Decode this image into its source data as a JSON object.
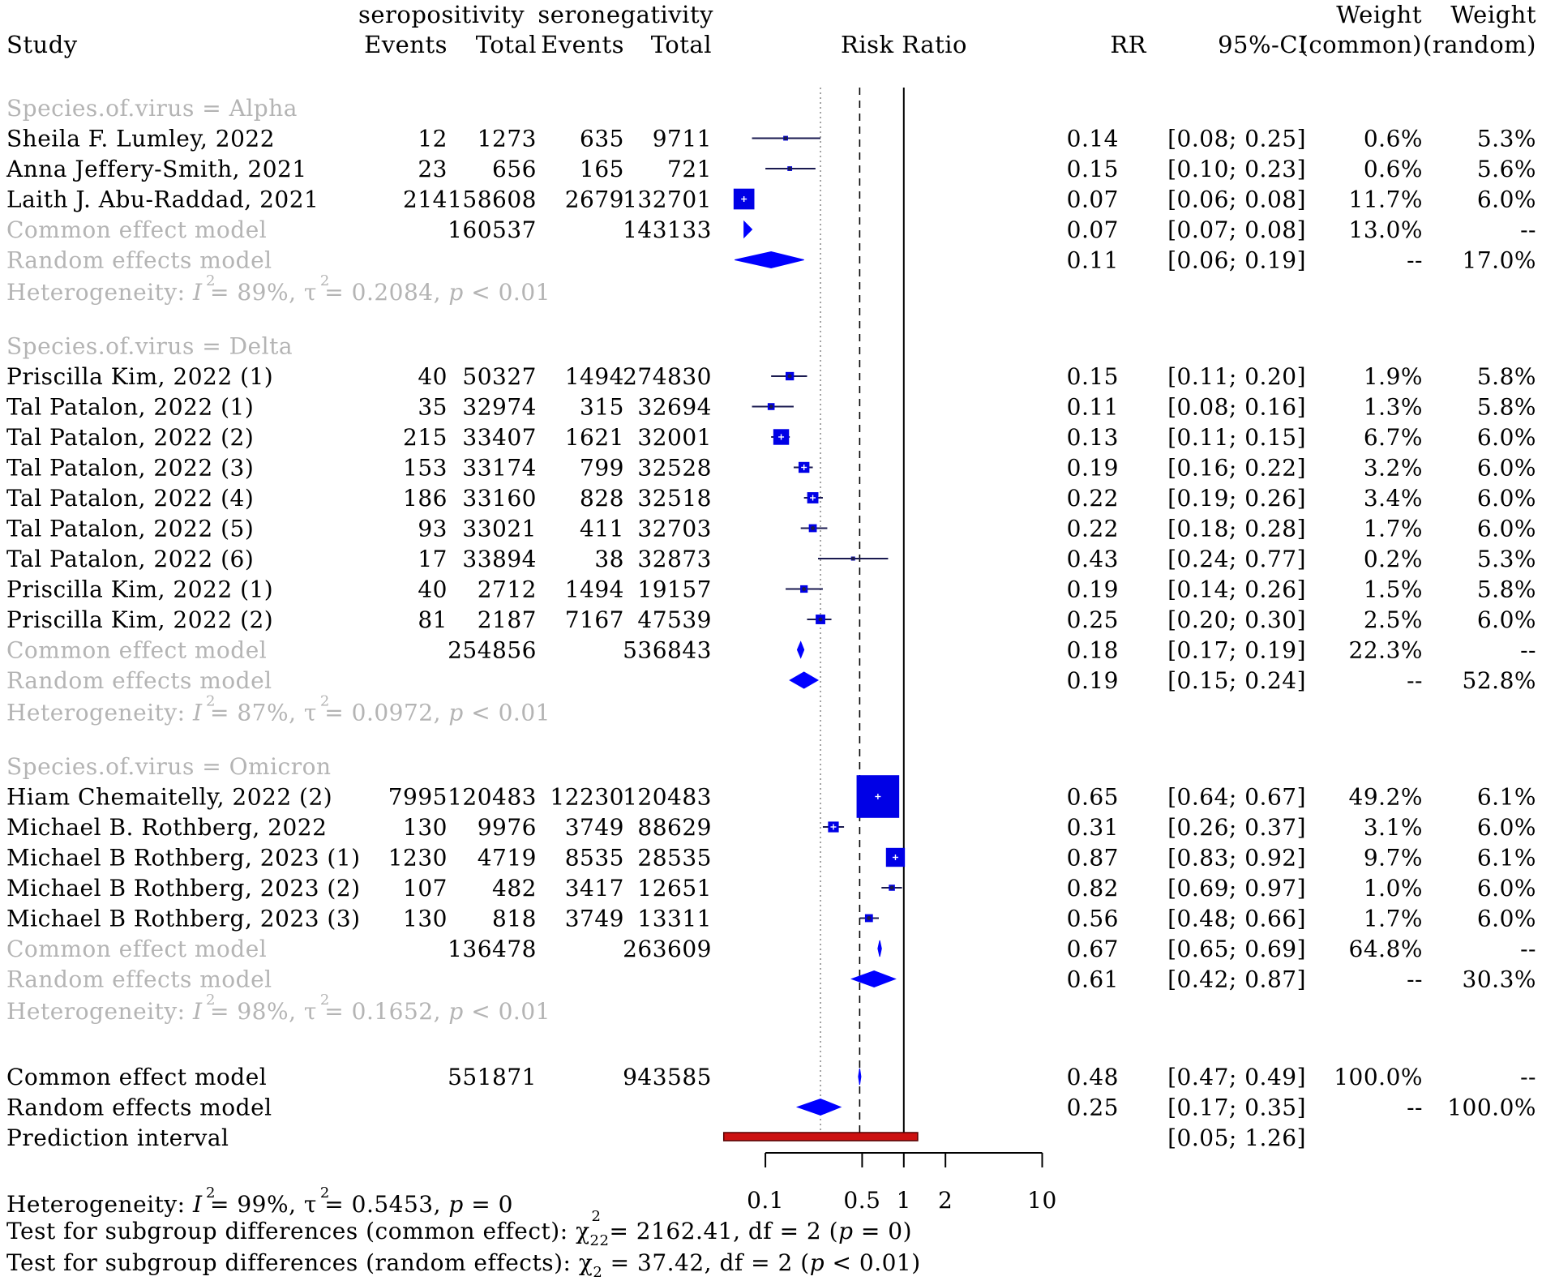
{
  "chart_data": {
    "type": "forest",
    "headers": {
      "study": "Study",
      "group_e": "seropositivity",
      "group_c": "seronegativity",
      "events_e": "Events",
      "total_e": "Total",
      "events_c": "Events",
      "total_c": "Total",
      "plot": "Risk Ratio",
      "rr": "RR",
      "ci": "95%-CI",
      "weight": "Weight",
      "weight_common": "(common)",
      "weight_random": "(random)"
    },
    "axis": {
      "scale": "log",
      "xlim": [
        0.07,
        10
      ],
      "ticks": [
        0.1,
        0.5,
        1,
        2,
        10
      ],
      "tick_labels": [
        "0.1",
        "0.5",
        "1",
        "2",
        "10"
      ],
      "reference_line": 1,
      "common_pooled_line": 0.48,
      "random_pooled_line": 0.25
    },
    "subgroups": [
      {
        "label": "Species.of.virus = Alpha",
        "studies": [
          {
            "study": "Sheila F. Lumley, 2022",
            "ev_e": "12",
            "tot_e": "1273",
            "ev_c": "635",
            "tot_c": "9711",
            "rr": 0.14,
            "lo": 0.08,
            "hi": 0.25,
            "rr_txt": "0.14",
            "ci_txt": "[0.08; 0.25]",
            "w_common": "0.6%",
            "w_random": "5.3%",
            "wc": 0.6
          },
          {
            "study": "Anna Jeffery-Smith, 2021",
            "ev_e": "23",
            "tot_e": "656",
            "ev_c": "165",
            "tot_c": "721",
            "rr": 0.15,
            "lo": 0.1,
            "hi": 0.23,
            "rr_txt": "0.15",
            "ci_txt": "[0.10; 0.23]",
            "w_common": "0.6%",
            "w_random": "5.6%",
            "wc": 0.6
          },
          {
            "study": "Laith J. Abu-Raddad, 2021",
            "ev_e": "214",
            "tot_e": "158608",
            "ev_c": "2679",
            "tot_c": "132701",
            "rr": 0.07,
            "lo": 0.06,
            "hi": 0.08,
            "rr_txt": "0.07",
            "ci_txt": "[0.06; 0.08]",
            "w_common": "11.7%",
            "w_random": "6.0%",
            "wc": 11.7
          }
        ],
        "common": {
          "label": "Common effect model",
          "tot_e": "160537",
          "tot_c": "143133",
          "rr": 0.07,
          "lo": 0.07,
          "hi": 0.08,
          "rr_txt": "0.07",
          "ci_txt": "[0.07; 0.08]",
          "w_common": "13.0%",
          "w_random": "--"
        },
        "random": {
          "label": "Random effects model",
          "rr": 0.11,
          "lo": 0.06,
          "hi": 0.19,
          "rr_txt": "0.11",
          "ci_txt": "[0.06; 0.19]",
          "w_common": "--",
          "w_random": "17.0%"
        },
        "heterogeneity": {
          "prefix": "Heterogeneity: ",
          "I2": "I",
          "I2_val": " = 89%, ",
          "tau2": "τ",
          "tau2_val": " = 0.2084, ",
          "p": "p",
          "p_val": " < 0.01"
        }
      },
      {
        "label": "Species.of.virus = Delta",
        "studies": [
          {
            "study": "Priscilla Kim, 2022 (1)",
            "ev_e": "40",
            "tot_e": "50327",
            "ev_c": "1494",
            "tot_c": "274830",
            "rr": 0.15,
            "lo": 0.11,
            "hi": 0.2,
            "rr_txt": "0.15",
            "ci_txt": "[0.11; 0.20]",
            "w_common": "1.9%",
            "w_random": "5.8%",
            "wc": 1.9
          },
          {
            "study": "Tal Patalon, 2022 (1)",
            "ev_e": "35",
            "tot_e": "32974",
            "ev_c": "315",
            "tot_c": "32694",
            "rr": 0.11,
            "lo": 0.08,
            "hi": 0.16,
            "rr_txt": "0.11",
            "ci_txt": "[0.08; 0.16]",
            "w_common": "1.3%",
            "w_random": "5.8%",
            "wc": 1.3
          },
          {
            "study": "Tal Patalon, 2022 (2)",
            "ev_e": "215",
            "tot_e": "33407",
            "ev_c": "1621",
            "tot_c": "32001",
            "rr": 0.13,
            "lo": 0.11,
            "hi": 0.15,
            "rr_txt": "0.13",
            "ci_txt": "[0.11; 0.15]",
            "w_common": "6.7%",
            "w_random": "6.0%",
            "wc": 6.7
          },
          {
            "study": "Tal Patalon, 2022 (3)",
            "ev_e": "153",
            "tot_e": "33174",
            "ev_c": "799",
            "tot_c": "32528",
            "rr": 0.19,
            "lo": 0.16,
            "hi": 0.22,
            "rr_txt": "0.19",
            "ci_txt": "[0.16; 0.22]",
            "w_common": "3.2%",
            "w_random": "6.0%",
            "wc": 3.2
          },
          {
            "study": "Tal Patalon, 2022 (4)",
            "ev_e": "186",
            "tot_e": "33160",
            "ev_c": "828",
            "tot_c": "32518",
            "rr": 0.22,
            "lo": 0.19,
            "hi": 0.26,
            "rr_txt": "0.22",
            "ci_txt": "[0.19; 0.26]",
            "w_common": "3.4%",
            "w_random": "6.0%",
            "wc": 3.4
          },
          {
            "study": "Tal Patalon, 2022 (5)",
            "ev_e": "93",
            "tot_e": "33021",
            "ev_c": "411",
            "tot_c": "32703",
            "rr": 0.22,
            "lo": 0.18,
            "hi": 0.28,
            "rr_txt": "0.22",
            "ci_txt": "[0.18; 0.28]",
            "w_common": "1.7%",
            "w_random": "6.0%",
            "wc": 1.7
          },
          {
            "study": "Tal Patalon, 2022 (6)",
            "ev_e": "17",
            "tot_e": "33894",
            "ev_c": "38",
            "tot_c": "32873",
            "rr": 0.43,
            "lo": 0.24,
            "hi": 0.77,
            "rr_txt": "0.43",
            "ci_txt": "[0.24; 0.77]",
            "w_common": "0.2%",
            "w_random": "5.3%",
            "wc": 0.2
          },
          {
            "study": "Priscilla Kim, 2022 (1)",
            "ev_e": "40",
            "tot_e": "2712",
            "ev_c": "1494",
            "tot_c": "19157",
            "rr": 0.19,
            "lo": 0.14,
            "hi": 0.26,
            "rr_txt": "0.19",
            "ci_txt": "[0.14; 0.26]",
            "w_common": "1.5%",
            "w_random": "5.8%",
            "wc": 1.5
          },
          {
            "study": "Priscilla Kim, 2022 (2)",
            "ev_e": "81",
            "tot_e": "2187",
            "ev_c": "7167",
            "tot_c": "47539",
            "rr": 0.25,
            "lo": 0.2,
            "hi": 0.3,
            "rr_txt": "0.25",
            "ci_txt": "[0.20; 0.30]",
            "w_common": "2.5%",
            "w_random": "6.0%",
            "wc": 2.5
          }
        ],
        "common": {
          "label": "Common effect model",
          "tot_e": "254856",
          "tot_c": "536843",
          "rr": 0.18,
          "lo": 0.17,
          "hi": 0.19,
          "rr_txt": "0.18",
          "ci_txt": "[0.17; 0.19]",
          "w_common": "22.3%",
          "w_random": "--"
        },
        "random": {
          "label": "Random effects model",
          "rr": 0.19,
          "lo": 0.15,
          "hi": 0.24,
          "rr_txt": "0.19",
          "ci_txt": "[0.15; 0.24]",
          "w_common": "--",
          "w_random": "52.8%"
        },
        "heterogeneity": {
          "prefix": "Heterogeneity: ",
          "I2": "I",
          "I2_val": " = 87%, ",
          "tau2": "τ",
          "tau2_val": " = 0.0972, ",
          "p": "p",
          "p_val": " < 0.01"
        }
      },
      {
        "label": "Species.of.virus = Omicron",
        "studies": [
          {
            "study": "Hiam Chemaitelly, 2022 (2)",
            "ev_e": "7995",
            "tot_e": "120483",
            "ev_c": "12230",
            "tot_c": "120483",
            "rr": 0.65,
            "lo": 0.64,
            "hi": 0.67,
            "rr_txt": "0.65",
            "ci_txt": "[0.64; 0.67]",
            "w_common": "49.2%",
            "w_random": "6.1%",
            "wc": 49.2
          },
          {
            "study": "Michael B. Rothberg, 2022",
            "ev_e": "130",
            "tot_e": "9976",
            "ev_c": "3749",
            "tot_c": "88629",
            "rr": 0.31,
            "lo": 0.26,
            "hi": 0.37,
            "rr_txt": "0.31",
            "ci_txt": "[0.26; 0.37]",
            "w_common": "3.1%",
            "w_random": "6.0%",
            "wc": 3.1
          },
          {
            "study": "Michael B Rothberg, 2023 (1)",
            "ev_e": "1230",
            "tot_e": "4719",
            "ev_c": "8535",
            "tot_c": "28535",
            "rr": 0.87,
            "lo": 0.83,
            "hi": 0.92,
            "rr_txt": "0.87",
            "ci_txt": "[0.83; 0.92]",
            "w_common": "9.7%",
            "w_random": "6.1%",
            "wc": 9.7
          },
          {
            "study": "Michael B Rothberg, 2023 (2)",
            "ev_e": "107",
            "tot_e": "482",
            "ev_c": "3417",
            "tot_c": "12651",
            "rr": 0.82,
            "lo": 0.69,
            "hi": 0.97,
            "rr_txt": "0.82",
            "ci_txt": "[0.69; 0.97]",
            "w_common": "1.0%",
            "w_random": "6.0%",
            "wc": 1.0
          },
          {
            "study": "Michael B Rothberg, 2023 (3)",
            "ev_e": "130",
            "tot_e": "818",
            "ev_c": "3749",
            "tot_c": "13311",
            "rr": 0.56,
            "lo": 0.48,
            "hi": 0.66,
            "rr_txt": "0.56",
            "ci_txt": "[0.48; 0.66]",
            "w_common": "1.7%",
            "w_random": "6.0%",
            "wc": 1.7
          }
        ],
        "common": {
          "label": "Common effect model",
          "tot_e": "136478",
          "tot_c": "263609",
          "rr": 0.67,
          "lo": 0.65,
          "hi": 0.69,
          "rr_txt": "0.67",
          "ci_txt": "[0.65; 0.69]",
          "w_common": "64.8%",
          "w_random": "--"
        },
        "random": {
          "label": "Random effects model",
          "rr": 0.61,
          "lo": 0.42,
          "hi": 0.87,
          "rr_txt": "0.61",
          "ci_txt": "[0.42; 0.87]",
          "w_common": "--",
          "w_random": "30.3%"
        },
        "heterogeneity": {
          "prefix": "Heterogeneity: ",
          "I2": "I",
          "I2_val": " = 98%, ",
          "tau2": "τ",
          "tau2_val": " = 0.1652, ",
          "p": "p",
          "p_val": " < 0.01"
        }
      }
    ],
    "overall": {
      "common": {
        "label": "Common effect model",
        "tot_e": "551871",
        "tot_c": "943585",
        "rr": 0.48,
        "lo": 0.47,
        "hi": 0.49,
        "rr_txt": "0.48",
        "ci_txt": "[0.47; 0.49]",
        "w_common": "100.0%",
        "w_random": "--"
      },
      "random": {
        "label": "Random effects model",
        "rr": 0.25,
        "lo": 0.17,
        "hi": 0.35,
        "rr_txt": "0.25",
        "ci_txt": "[0.17; 0.35]",
        "w_common": "--",
        "w_random": "100.0%"
      },
      "prediction": {
        "label": "Prediction interval",
        "lo": 0.05,
        "hi": 1.26,
        "ci_txt": "[0.05; 1.26]"
      }
    },
    "footer": {
      "heterogeneity": {
        "prefix": "Heterogeneity: ",
        "I2": "I",
        "I2_val": " = 99%, ",
        "tau2": "τ",
        "tau2_val": " = 0.5453, ",
        "p": "p",
        "p_val": " = 0"
      },
      "test_common": {
        "prefix": "Test for subgroup differences (common effect): ",
        "chi": "χ",
        "sub": "2",
        "sup": "2",
        "extra_sub": "2",
        "value": "= 2162.41, df = 2 (",
        "p": "p",
        "p_val": " = 0)"
      },
      "test_random": {
        "prefix": "Test for subgroup differences (random effects): ",
        "chi": "χ",
        "sub": "2",
        "value": " = 37.42, df = 2 (",
        "p": "p",
        "p_val": " < 0.01)"
      },
      "superscript": "2"
    },
    "colors": {
      "square": "#0000e6",
      "diamond": "#0000ff",
      "ci_line": "#1a1a50",
      "prediction": "#cc1111",
      "subgroup_text": "#b4b4b4",
      "text": "#000000"
    }
  }
}
